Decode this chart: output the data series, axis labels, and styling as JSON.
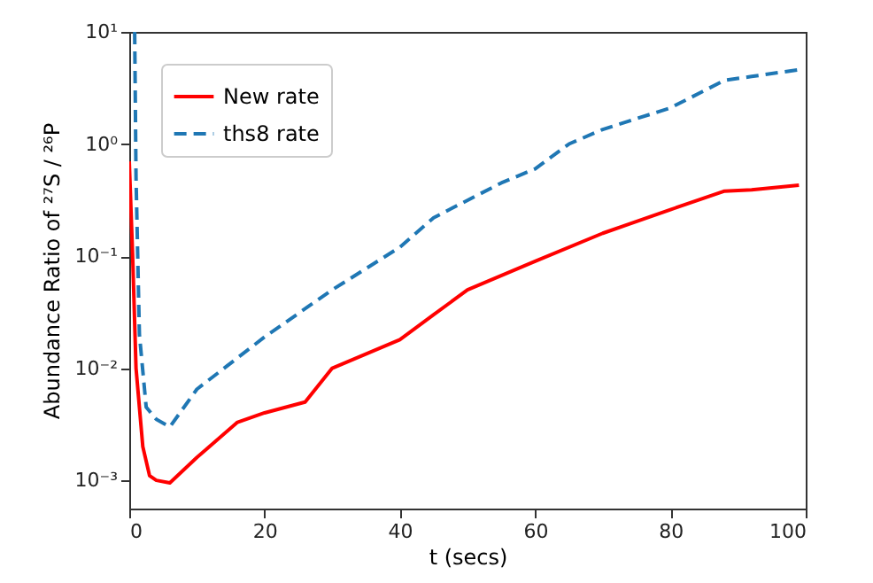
{
  "chart_data": {
    "type": "line",
    "xlabel": "t (secs)",
    "ylabel": "Abundance Ratio of ²⁷S / ²⁶P",
    "log": "y",
    "xlim": [
      0,
      100
    ],
    "xticks": [
      0,
      20,
      40,
      60,
      80,
      100
    ],
    "ylim": [
      0.00056,
      10
    ],
    "yticks": [
      {
        "value": 0.001,
        "label": "10⁻³"
      },
      {
        "value": 0.01,
        "label": "10⁻²"
      },
      {
        "value": 0.1,
        "label": "10⁻¹"
      },
      {
        "value": 1,
        "label": "10⁰"
      },
      {
        "value": 10,
        "label": "10¹"
      }
    ],
    "grid": false,
    "legend": "top left",
    "series": [
      {
        "name": "New rate",
        "color": "#ff0000",
        "line_style": "solid",
        "x": [
          0,
          0.5,
          1,
          2,
          3,
          4,
          6,
          10,
          16,
          20,
          26,
          30,
          40,
          45,
          50,
          60,
          70,
          80,
          88,
          92,
          99
        ],
        "values": [
          0.7,
          0.1,
          0.01,
          0.002,
          0.0011,
          0.001,
          0.00095,
          0.0016,
          0.0033,
          0.004,
          0.005,
          0.01,
          0.018,
          0.03,
          0.05,
          0.09,
          0.16,
          0.26,
          0.38,
          0.39,
          0.43
        ]
      },
      {
        "name": "ths8 rate",
        "color": "#1f77b4",
        "line_style": "dashed",
        "x": [
          0.8,
          1,
          1.5,
          2.5,
          4,
          6,
          10,
          20,
          30,
          40,
          45,
          55,
          60,
          65,
          70,
          80,
          88,
          92,
          99
        ],
        "values": [
          10,
          0.5,
          0.02,
          0.0045,
          0.0035,
          0.003,
          0.0065,
          0.019,
          0.05,
          0.12,
          0.22,
          0.45,
          0.6,
          1.0,
          1.35,
          2.1,
          3.7,
          4,
          4.6
        ]
      }
    ]
  }
}
